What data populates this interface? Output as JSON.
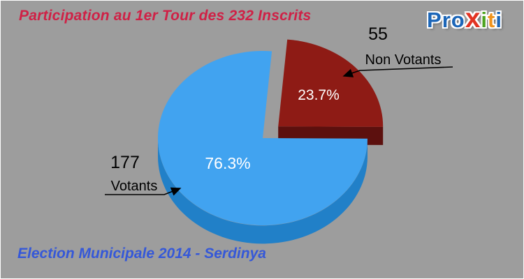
{
  "header": {
    "title": "Participation au 1er Tour des 232 Inscrits",
    "logo_letters": [
      {
        "ch": "P",
        "color": "#1c66b8"
      },
      {
        "ch": "r",
        "color": "#1c66b8"
      },
      {
        "ch": "o",
        "color": "#1c66b8"
      },
      {
        "ch": "x",
        "color": "#e23423"
      },
      {
        "ch": "i",
        "color": "#4da31f"
      },
      {
        "ch": "t",
        "color": "#f0941e"
      },
      {
        "ch": "i",
        "color": "#1c66b8"
      }
    ]
  },
  "footer": {
    "caption": "Election Municipale 2014 - Serdinya"
  },
  "colors": {
    "background": "#9d9d9d",
    "title": "#cf2146",
    "footer": "#3558d8",
    "callout_text": "#000000",
    "slice_label_text": "#ffffff"
  },
  "chart_data": {
    "type": "pie",
    "style": "3d-exploded",
    "title": "Participation au 1er Tour des 232 Inscrits",
    "caption": "Election Municipale 2014 - Serdinya",
    "total_inscrits": 232,
    "start_angle_deg": -85,
    "legend_position": "callouts",
    "slices": [
      {
        "label": "Non Votants",
        "value": 55,
        "percent": 23.7,
        "percent_label": "23.7%",
        "color": "#8e1b15",
        "side_color": "#5c100e",
        "exploded": true
      },
      {
        "label": "Votants",
        "value": 177,
        "percent": 76.3,
        "percent_label": "76.3%",
        "color": "#41a3f0",
        "side_color": "#2180c8",
        "exploded": false
      }
    ]
  }
}
